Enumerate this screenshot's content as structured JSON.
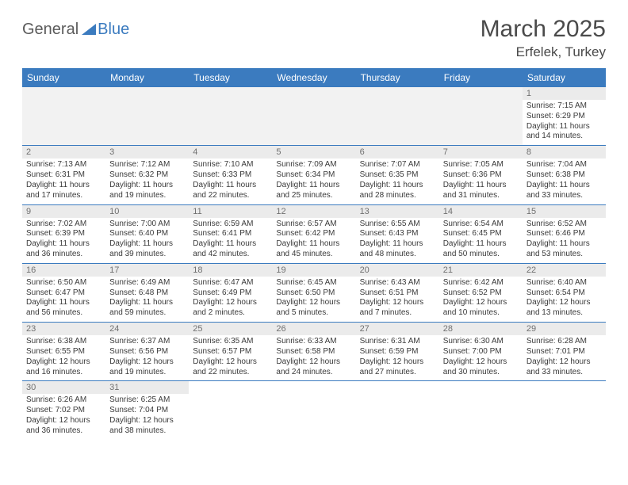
{
  "logo": {
    "text1": "General",
    "text2": "Blue"
  },
  "title": "March 2025",
  "location": "Erfelek, Turkey",
  "colors": {
    "header_bg": "#3b7bbf",
    "header_text": "#ffffff",
    "daynum_bg": "#ebebeb",
    "daynum_text": "#707070",
    "body_text": "#3a3a3a",
    "row_border": "#3b7bbf",
    "logo_gray": "#5a5a5a",
    "logo_blue": "#3b7bbf"
  },
  "dayHeaders": [
    "Sunday",
    "Monday",
    "Tuesday",
    "Wednesday",
    "Thursday",
    "Friday",
    "Saturday"
  ],
  "weeks": [
    [
      null,
      null,
      null,
      null,
      null,
      null,
      {
        "n": "1",
        "sr": "Sunrise: 7:15 AM",
        "ss": "Sunset: 6:29 PM",
        "d1": "Daylight: 11 hours",
        "d2": "and 14 minutes."
      }
    ],
    [
      {
        "n": "2",
        "sr": "Sunrise: 7:13 AM",
        "ss": "Sunset: 6:31 PM",
        "d1": "Daylight: 11 hours",
        "d2": "and 17 minutes."
      },
      {
        "n": "3",
        "sr": "Sunrise: 7:12 AM",
        "ss": "Sunset: 6:32 PM",
        "d1": "Daylight: 11 hours",
        "d2": "and 19 minutes."
      },
      {
        "n": "4",
        "sr": "Sunrise: 7:10 AM",
        "ss": "Sunset: 6:33 PM",
        "d1": "Daylight: 11 hours",
        "d2": "and 22 minutes."
      },
      {
        "n": "5",
        "sr": "Sunrise: 7:09 AM",
        "ss": "Sunset: 6:34 PM",
        "d1": "Daylight: 11 hours",
        "d2": "and 25 minutes."
      },
      {
        "n": "6",
        "sr": "Sunrise: 7:07 AM",
        "ss": "Sunset: 6:35 PM",
        "d1": "Daylight: 11 hours",
        "d2": "and 28 minutes."
      },
      {
        "n": "7",
        "sr": "Sunrise: 7:05 AM",
        "ss": "Sunset: 6:36 PM",
        "d1": "Daylight: 11 hours",
        "d2": "and 31 minutes."
      },
      {
        "n": "8",
        "sr": "Sunrise: 7:04 AM",
        "ss": "Sunset: 6:38 PM",
        "d1": "Daylight: 11 hours",
        "d2": "and 33 minutes."
      }
    ],
    [
      {
        "n": "9",
        "sr": "Sunrise: 7:02 AM",
        "ss": "Sunset: 6:39 PM",
        "d1": "Daylight: 11 hours",
        "d2": "and 36 minutes."
      },
      {
        "n": "10",
        "sr": "Sunrise: 7:00 AM",
        "ss": "Sunset: 6:40 PM",
        "d1": "Daylight: 11 hours",
        "d2": "and 39 minutes."
      },
      {
        "n": "11",
        "sr": "Sunrise: 6:59 AM",
        "ss": "Sunset: 6:41 PM",
        "d1": "Daylight: 11 hours",
        "d2": "and 42 minutes."
      },
      {
        "n": "12",
        "sr": "Sunrise: 6:57 AM",
        "ss": "Sunset: 6:42 PM",
        "d1": "Daylight: 11 hours",
        "d2": "and 45 minutes."
      },
      {
        "n": "13",
        "sr": "Sunrise: 6:55 AM",
        "ss": "Sunset: 6:43 PM",
        "d1": "Daylight: 11 hours",
        "d2": "and 48 minutes."
      },
      {
        "n": "14",
        "sr": "Sunrise: 6:54 AM",
        "ss": "Sunset: 6:45 PM",
        "d1": "Daylight: 11 hours",
        "d2": "and 50 minutes."
      },
      {
        "n": "15",
        "sr": "Sunrise: 6:52 AM",
        "ss": "Sunset: 6:46 PM",
        "d1": "Daylight: 11 hours",
        "d2": "and 53 minutes."
      }
    ],
    [
      {
        "n": "16",
        "sr": "Sunrise: 6:50 AM",
        "ss": "Sunset: 6:47 PM",
        "d1": "Daylight: 11 hours",
        "d2": "and 56 minutes."
      },
      {
        "n": "17",
        "sr": "Sunrise: 6:49 AM",
        "ss": "Sunset: 6:48 PM",
        "d1": "Daylight: 11 hours",
        "d2": "and 59 minutes."
      },
      {
        "n": "18",
        "sr": "Sunrise: 6:47 AM",
        "ss": "Sunset: 6:49 PM",
        "d1": "Daylight: 12 hours",
        "d2": "and 2 minutes."
      },
      {
        "n": "19",
        "sr": "Sunrise: 6:45 AM",
        "ss": "Sunset: 6:50 PM",
        "d1": "Daylight: 12 hours",
        "d2": "and 5 minutes."
      },
      {
        "n": "20",
        "sr": "Sunrise: 6:43 AM",
        "ss": "Sunset: 6:51 PM",
        "d1": "Daylight: 12 hours",
        "d2": "and 7 minutes."
      },
      {
        "n": "21",
        "sr": "Sunrise: 6:42 AM",
        "ss": "Sunset: 6:52 PM",
        "d1": "Daylight: 12 hours",
        "d2": "and 10 minutes."
      },
      {
        "n": "22",
        "sr": "Sunrise: 6:40 AM",
        "ss": "Sunset: 6:54 PM",
        "d1": "Daylight: 12 hours",
        "d2": "and 13 minutes."
      }
    ],
    [
      {
        "n": "23",
        "sr": "Sunrise: 6:38 AM",
        "ss": "Sunset: 6:55 PM",
        "d1": "Daylight: 12 hours",
        "d2": "and 16 minutes."
      },
      {
        "n": "24",
        "sr": "Sunrise: 6:37 AM",
        "ss": "Sunset: 6:56 PM",
        "d1": "Daylight: 12 hours",
        "d2": "and 19 minutes."
      },
      {
        "n": "25",
        "sr": "Sunrise: 6:35 AM",
        "ss": "Sunset: 6:57 PM",
        "d1": "Daylight: 12 hours",
        "d2": "and 22 minutes."
      },
      {
        "n": "26",
        "sr": "Sunrise: 6:33 AM",
        "ss": "Sunset: 6:58 PM",
        "d1": "Daylight: 12 hours",
        "d2": "and 24 minutes."
      },
      {
        "n": "27",
        "sr": "Sunrise: 6:31 AM",
        "ss": "Sunset: 6:59 PM",
        "d1": "Daylight: 12 hours",
        "d2": "and 27 minutes."
      },
      {
        "n": "28",
        "sr": "Sunrise: 6:30 AM",
        "ss": "Sunset: 7:00 PM",
        "d1": "Daylight: 12 hours",
        "d2": "and 30 minutes."
      },
      {
        "n": "29",
        "sr": "Sunrise: 6:28 AM",
        "ss": "Sunset: 7:01 PM",
        "d1": "Daylight: 12 hours",
        "d2": "and 33 minutes."
      }
    ],
    [
      {
        "n": "30",
        "sr": "Sunrise: 6:26 AM",
        "ss": "Sunset: 7:02 PM",
        "d1": "Daylight: 12 hours",
        "d2": "and 36 minutes."
      },
      {
        "n": "31",
        "sr": "Sunrise: 6:25 AM",
        "ss": "Sunset: 7:04 PM",
        "d1": "Daylight: 12 hours",
        "d2": "and 38 minutes."
      },
      null,
      null,
      null,
      null,
      null
    ]
  ]
}
